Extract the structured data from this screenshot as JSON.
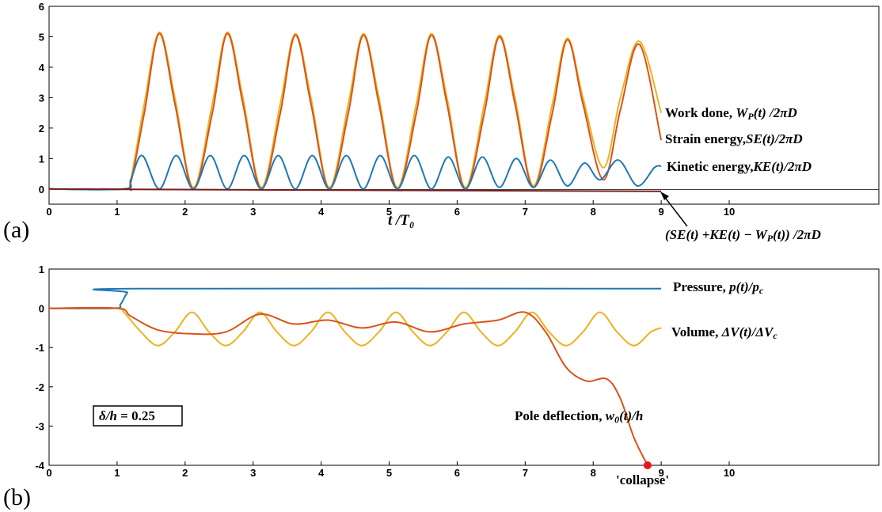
{
  "colors": {
    "blue": "#1f77b4",
    "orange": "#d95319",
    "yellow": "#edb120",
    "dark": "#7a1c1c"
  },
  "chart_data": [
    {
      "type": "line",
      "panel_label": "(a)",
      "xlabel": "t /T₀",
      "xlim": [
        0,
        12.2
      ],
      "ylim": [
        -0.5,
        6
      ],
      "xticks": [
        "0",
        "1",
        "2",
        "3",
        "4",
        "5",
        "6",
        "7",
        "8",
        "9",
        "10"
      ],
      "yticks": [
        "0",
        "1",
        "2",
        "3",
        "4",
        "5",
        "6"
      ],
      "grid": false,
      "series": [
        {
          "name": "Work done, Wₚ(t)/2πD",
          "color": "#edb120",
          "x": [
            0,
            1.1,
            1.2,
            1.4,
            1.62,
            1.85,
            2.12,
            2.4,
            2.62,
            2.85,
            3.12,
            3.4,
            3.62,
            3.85,
            4.12,
            4.4,
            4.62,
            4.85,
            5.12,
            5.4,
            5.62,
            5.85,
            6.12,
            6.4,
            6.62,
            6.85,
            7.12,
            7.4,
            7.62,
            7.85,
            8.15,
            8.4,
            8.68,
            9.0
          ],
          "y": [
            0,
            0,
            0.3,
            2.8,
            5.15,
            3.0,
            0.05,
            2.8,
            5.15,
            3.0,
            0.05,
            2.8,
            5.1,
            3.0,
            0.05,
            2.8,
            5.1,
            3.0,
            0.05,
            2.8,
            5.1,
            3.0,
            0.05,
            2.8,
            5.05,
            3.0,
            0.1,
            2.8,
            4.95,
            3.0,
            0.7,
            3.0,
            4.85,
            2.5
          ]
        },
        {
          "name": "Strain energy, SE(t)/2πD",
          "color": "#d95319",
          "x": [
            0,
            1.1,
            1.2,
            1.4,
            1.62,
            1.85,
            2.12,
            2.4,
            2.62,
            2.85,
            3.12,
            3.4,
            3.62,
            3.85,
            4.12,
            4.4,
            4.62,
            4.85,
            5.12,
            5.4,
            5.62,
            5.85,
            6.12,
            6.4,
            6.62,
            6.85,
            7.12,
            7.4,
            7.62,
            7.85,
            8.15,
            8.4,
            8.68,
            9.0
          ],
          "y": [
            0,
            0,
            0.2,
            2.5,
            5.1,
            2.8,
            0.0,
            2.5,
            5.1,
            2.8,
            0.0,
            2.5,
            5.05,
            2.8,
            0.0,
            2.5,
            5.05,
            2.8,
            0.0,
            2.5,
            5.05,
            2.8,
            0.0,
            2.5,
            5.0,
            2.8,
            0.05,
            2.5,
            4.9,
            2.8,
            0.3,
            2.6,
            4.75,
            1.6
          ]
        },
        {
          "name": "Kinetic energy, KE(t)/2πD",
          "color": "#1f77b4",
          "x": [
            0,
            1.1,
            1.2,
            1.37,
            1.62,
            1.87,
            2.12,
            2.37,
            2.62,
            2.87,
            3.12,
            3.37,
            3.62,
            3.87,
            4.12,
            4.37,
            4.62,
            4.87,
            5.12,
            5.37,
            5.62,
            5.87,
            6.12,
            6.37,
            6.62,
            6.87,
            7.12,
            7.37,
            7.62,
            7.87,
            8.1,
            8.37,
            8.65,
            8.9,
            9.0
          ],
          "y": [
            0,
            0,
            0.3,
            1.1,
            0.0,
            1.1,
            0.0,
            1.1,
            0.0,
            1.1,
            0.0,
            1.1,
            0.0,
            1.1,
            0.0,
            1.1,
            0.0,
            1.1,
            0.0,
            1.1,
            0.0,
            1.05,
            0.0,
            1.05,
            0.05,
            1.0,
            0.05,
            0.95,
            0.1,
            0.85,
            0.3,
            0.95,
            0.1,
            0.7,
            0.75
          ]
        },
        {
          "name": "(SE(t)+KE(t)−Wₚ(t))/2πD",
          "color": "#7a1c1c",
          "x": [
            0,
            1.1,
            9.0
          ],
          "y": [
            0,
            -0.01,
            -0.08
          ]
        }
      ],
      "annotations": {
        "work": "Work done, ",
        "work_sym": "W",
        "work_sub": "P",
        "work_tail": "(t) /2πD",
        "strain": "Strain energy,",
        "strain_sym": "SE(t)",
        "strain_tail": "/2πD",
        "kinetic": "Kinetic energy,",
        "kinetic_sym": "KE(t)",
        "kinetic_tail": "/2πD",
        "balance_a": "(SE(t) +KE(t) − W",
        "balance_sub": "P",
        "balance_b": "(t)) /2πD"
      }
    },
    {
      "type": "line",
      "panel_label": "(b)",
      "xlim": [
        0,
        12.2
      ],
      "ylim": [
        -4,
        1
      ],
      "xticks": [
        "0",
        "1",
        "2",
        "3",
        "4",
        "5",
        "6",
        "7",
        "8",
        "9",
        "10"
      ],
      "yticks": [
        "-4",
        "-3",
        "-2",
        "-1",
        "0",
        "1"
      ],
      "grid": false,
      "series": [
        {
          "name": "Pressure, p(t)/pₑ",
          "color": "#1f77b4",
          "x": [
            0,
            0.95,
            1.05,
            1.15,
            1.25,
            9.0
          ],
          "y": [
            0,
            0,
            0.1,
            0.4,
            0.5,
            0.5
          ]
        },
        {
          "name": "Volume, ΔV(t)/ΔVₑ",
          "color": "#edb120",
          "x": [
            0,
            1.0,
            1.1,
            1.35,
            1.6,
            1.85,
            2.1,
            2.35,
            2.6,
            2.85,
            3.1,
            3.35,
            3.6,
            3.85,
            4.1,
            4.35,
            4.6,
            4.85,
            5.1,
            5.35,
            5.6,
            5.85,
            6.1,
            6.35,
            6.6,
            6.85,
            7.1,
            7.35,
            7.6,
            7.85,
            8.1,
            8.35,
            8.6,
            8.85,
            9.0
          ],
          "y": [
            0,
            0,
            -0.1,
            -0.6,
            -0.95,
            -0.6,
            -0.1,
            -0.6,
            -0.95,
            -0.6,
            -0.1,
            -0.6,
            -0.95,
            -0.6,
            -0.1,
            -0.6,
            -0.95,
            -0.6,
            -0.1,
            -0.6,
            -0.95,
            -0.6,
            -0.1,
            -0.6,
            -0.95,
            -0.6,
            -0.1,
            -0.6,
            -0.95,
            -0.6,
            -0.1,
            -0.6,
            -0.95,
            -0.6,
            -0.5
          ]
        },
        {
          "name": "Pole deflection, w₀(t)/h",
          "color": "#d95319",
          "x": [
            0,
            1.0,
            1.2,
            1.6,
            2.1,
            2.6,
            3.1,
            3.6,
            4.1,
            4.6,
            5.1,
            5.6,
            6.1,
            6.6,
            7.0,
            7.3,
            7.6,
            7.9,
            8.2,
            8.4,
            8.6,
            8.8
          ],
          "y": [
            0,
            0,
            -0.2,
            -0.55,
            -0.65,
            -0.6,
            -0.15,
            -0.4,
            -0.3,
            -0.5,
            -0.35,
            -0.6,
            -0.4,
            -0.3,
            -0.1,
            -0.6,
            -1.5,
            -1.85,
            -1.8,
            -2.3,
            -3.3,
            -4.0
          ]
        }
      ],
      "annotations": {
        "pressure": "Pressure, ",
        "pressure_sym": "p(t)/p",
        "pressure_sub": "c",
        "volume": "Volume, ",
        "volume_sym": "ΔV(t)/ΔV",
        "volume_sub": "c",
        "pole": "Pole deflection, ",
        "pole_sym": "w",
        "pole_sub": "0",
        "pole_tail": "(t)/h",
        "collapse": "'collapse'",
        "box_sym": "δ/h",
        "box_val": " = 0.25"
      }
    }
  ]
}
